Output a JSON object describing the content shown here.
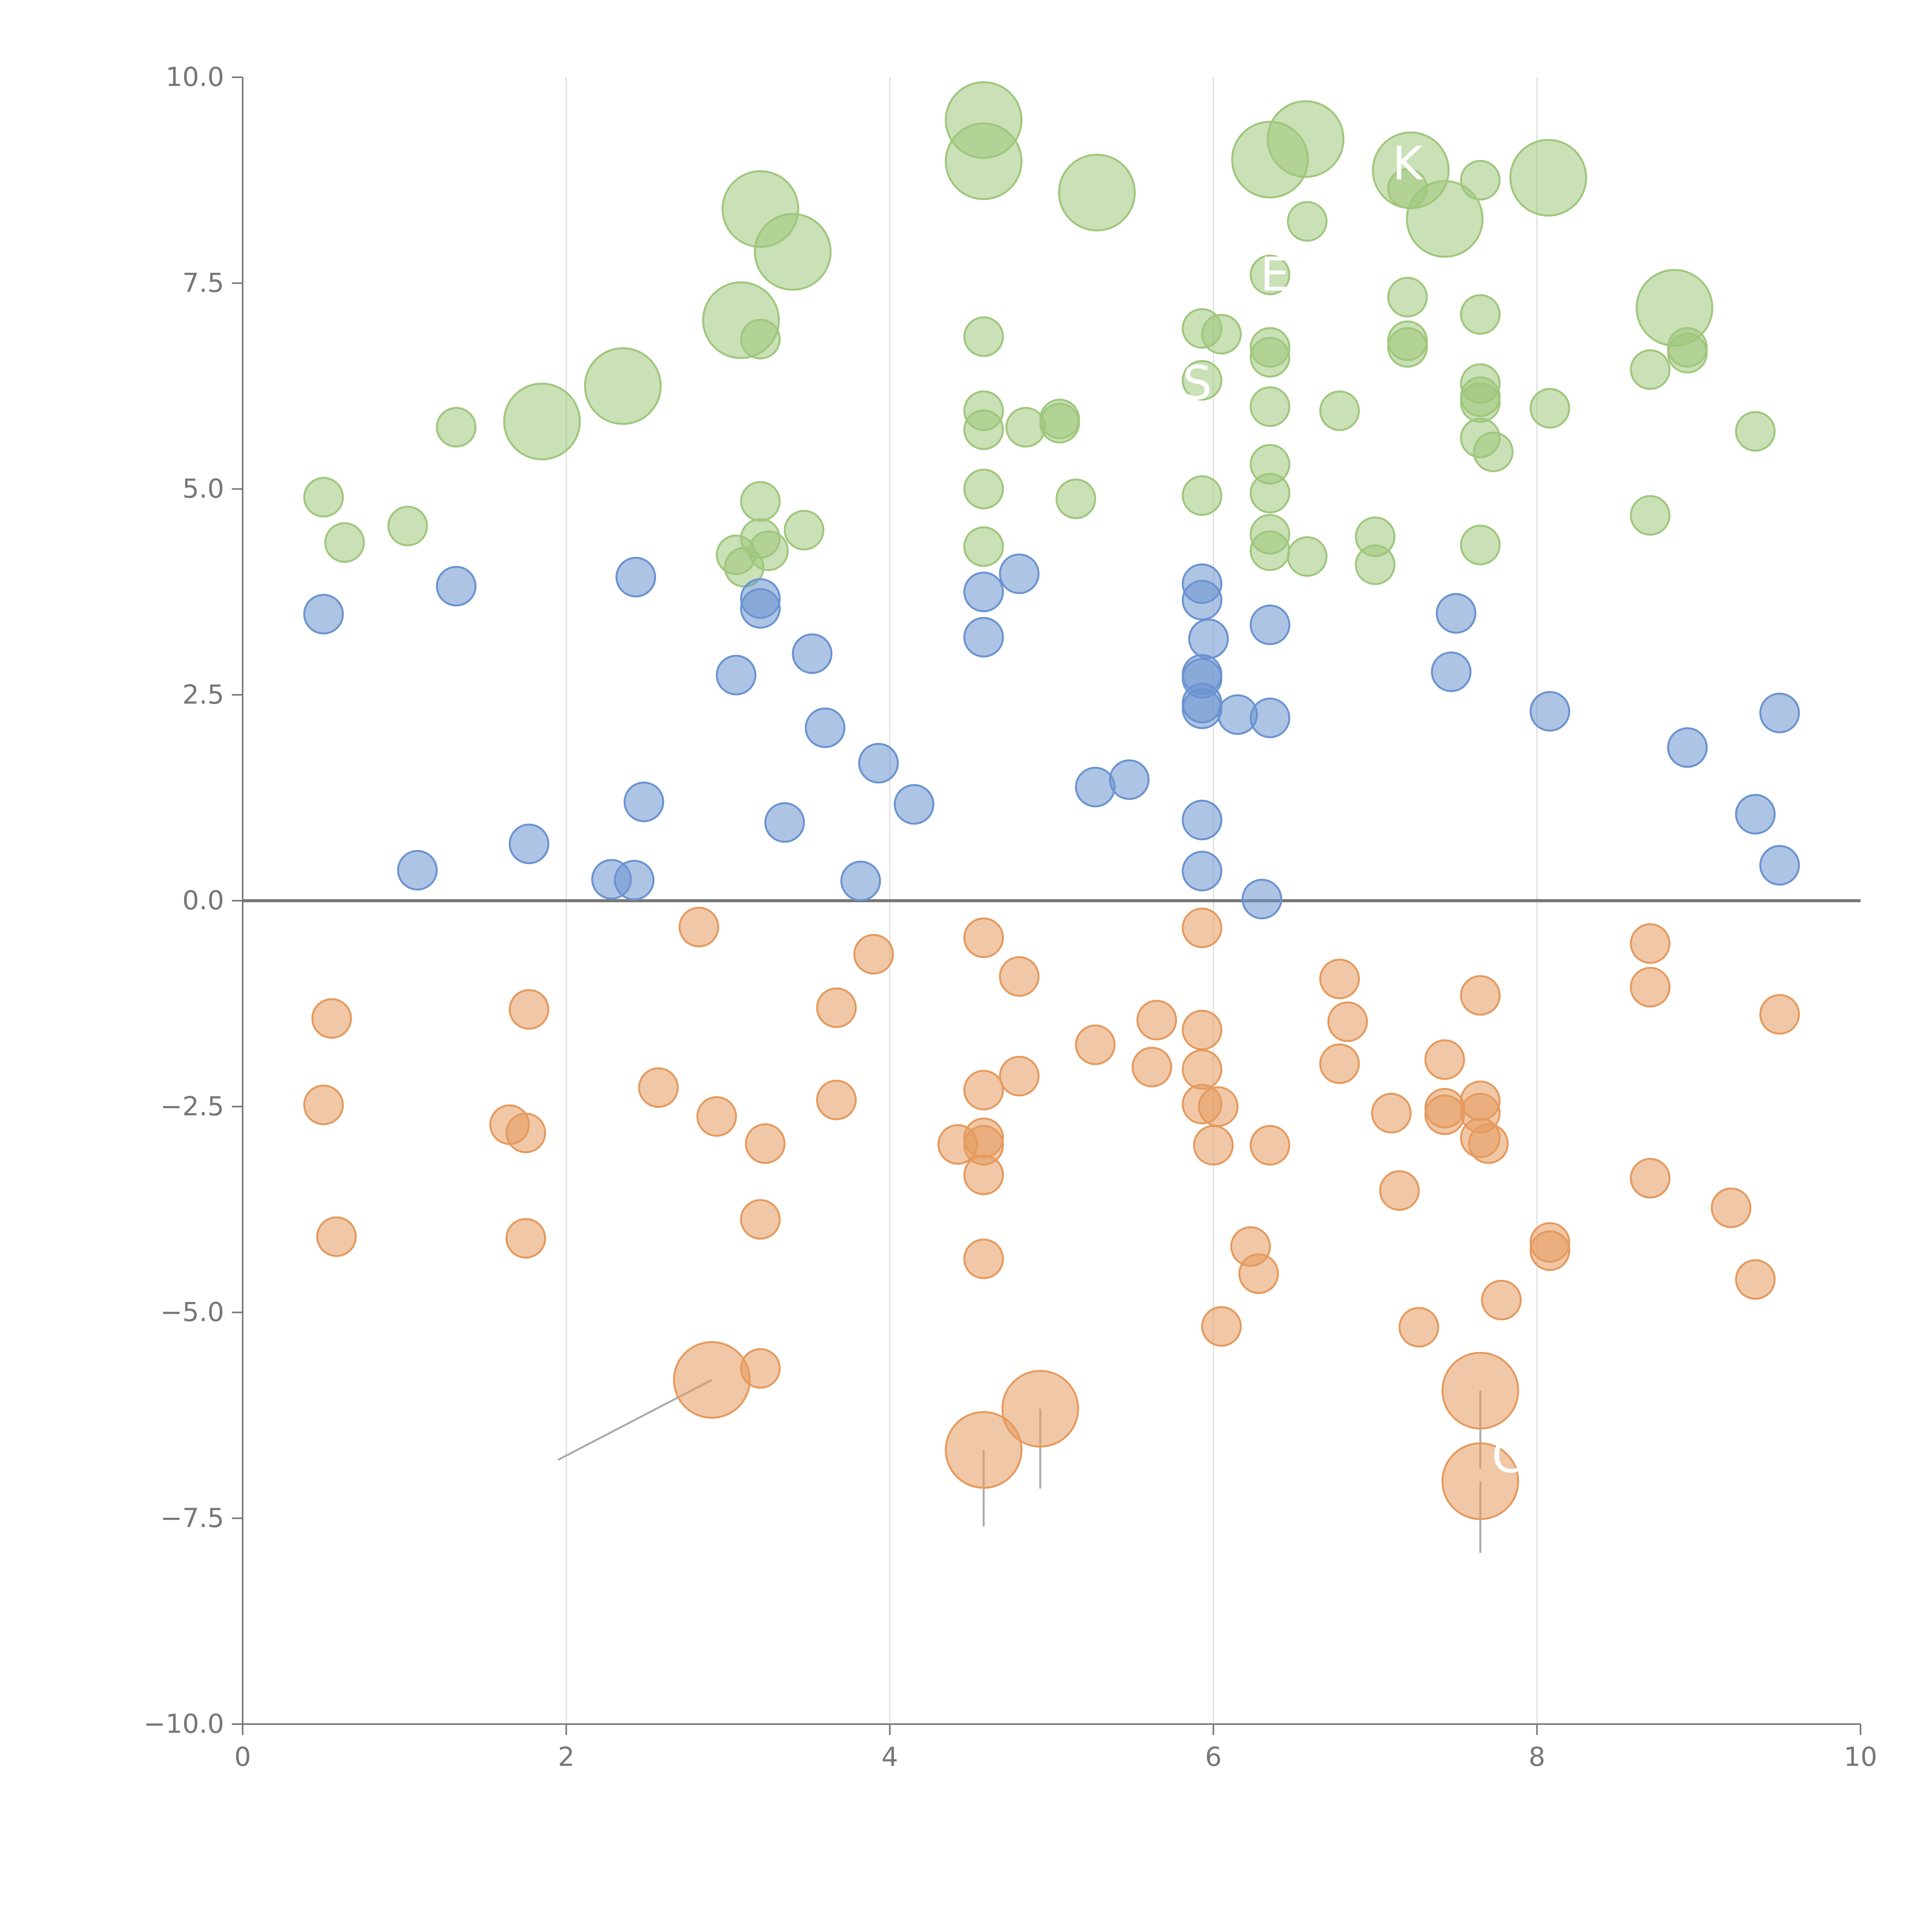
{
  "chart_data": {
    "type": "scatter",
    "title": "",
    "xlabel": "",
    "ylabel": "",
    "xlim": [
      0,
      10
    ],
    "ylim": [
      -10,
      10
    ],
    "xticks": [
      0,
      2,
      4,
      6,
      8,
      10
    ],
    "xtick_labels": [
      "0",
      "2",
      "4",
      "6",
      "8",
      "10"
    ],
    "yticks": [
      10,
      7.5,
      5,
      2.5,
      0,
      -2.5,
      -5,
      -7.5,
      -10
    ],
    "ytick_labels": [
      "10.0",
      "7.5",
      "5.0",
      "2.5",
      "0.0",
      "−2.5",
      "−5.0",
      "−7.5",
      "−10.0"
    ],
    "vertical_gridlines": [
      2,
      4,
      6,
      8
    ],
    "zero_line": 0,
    "colors": {
      "green": "#9fc77c",
      "blue": "#6b93d0",
      "orange": "#e59a5e",
      "axis": "#777777",
      "grid": "#dddddd",
      "leader": "#aaaaaa"
    },
    "series": [
      {
        "name": "green",
        "color": "#9fc77c",
        "points": [
          [
            0.5,
            4.9
          ],
          [
            0.63,
            4.35
          ],
          [
            1.02,
            4.55
          ],
          [
            1.32,
            5.75
          ],
          [
            3.2,
            4.85
          ],
          [
            3.2,
            4.4
          ],
          [
            3.25,
            4.25
          ],
          [
            3.47,
            4.5
          ],
          [
            3.05,
            4.2
          ],
          [
            3.1,
            4.05
          ],
          [
            3.2,
            6.82
          ],
          [
            4.58,
            6.85
          ],
          [
            4.58,
            5.95
          ],
          [
            4.58,
            5.72
          ],
          [
            4.84,
            5.75
          ],
          [
            5.05,
            5.85
          ],
          [
            5.05,
            5.8
          ],
          [
            4.58,
            5.0
          ],
          [
            4.58,
            4.3
          ],
          [
            5.15,
            4.88
          ],
          [
            5.93,
            6.95
          ],
          [
            6.05,
            6.88
          ],
          [
            5.93,
            6.32
          ],
          [
            5.93,
            4.92
          ],
          [
            6.35,
            7.6
          ],
          [
            6.58,
            8.25
          ],
          [
            6.35,
            6.72
          ],
          [
            6.35,
            6.6
          ],
          [
            6.35,
            6.0
          ],
          [
            6.35,
            5.3
          ],
          [
            6.35,
            4.95
          ],
          [
            6.35,
            4.45
          ],
          [
            6.35,
            4.25
          ],
          [
            6.58,
            4.18
          ],
          [
            6.78,
            5.95
          ],
          [
            7.0,
            4.42
          ],
          [
            7.0,
            4.08
          ],
          [
            7.2,
            7.33
          ],
          [
            7.2,
            6.8
          ],
          [
            7.2,
            6.72
          ],
          [
            7.2,
            8.65
          ],
          [
            7.65,
            8.75
          ],
          [
            7.65,
            7.12
          ],
          [
            7.65,
            6.28
          ],
          [
            7.65,
            6.12
          ],
          [
            7.65,
            6.05
          ],
          [
            7.65,
            5.62
          ],
          [
            7.73,
            5.45
          ],
          [
            7.65,
            4.32
          ],
          [
            8.08,
            5.98
          ],
          [
            8.7,
            6.45
          ],
          [
            8.7,
            4.68
          ],
          [
            8.93,
            6.72
          ],
          [
            8.93,
            6.65
          ],
          [
            9.35,
            5.7
          ]
        ]
      },
      {
        "name": "blue",
        "color": "#6b93d0",
        "points": [
          [
            0.5,
            3.48
          ],
          [
            1.32,
            3.82
          ],
          [
            2.43,
            3.93
          ],
          [
            1.08,
            0.37
          ],
          [
            1.77,
            0.69
          ],
          [
            2.28,
            0.26
          ],
          [
            2.42,
            0.25
          ],
          [
            2.48,
            1.2
          ],
          [
            3.2,
            3.67
          ],
          [
            3.2,
            3.55
          ],
          [
            3.05,
            2.74
          ],
          [
            3.35,
            0.95
          ],
          [
            3.52,
            3.0
          ],
          [
            3.6,
            2.1
          ],
          [
            3.93,
            1.67
          ],
          [
            3.82,
            0.24
          ],
          [
            4.15,
            1.17
          ],
          [
            4.58,
            3.75
          ],
          [
            4.58,
            3.2
          ],
          [
            4.8,
            3.97
          ],
          [
            5.27,
            1.38
          ],
          [
            5.48,
            1.47
          ],
          [
            5.93,
            3.85
          ],
          [
            5.93,
            3.65
          ],
          [
            5.97,
            3.18
          ],
          [
            5.93,
            2.75
          ],
          [
            5.93,
            2.7
          ],
          [
            5.93,
            2.4
          ],
          [
            5.93,
            2.33
          ],
          [
            6.15,
            2.26
          ],
          [
            6.35,
            3.35
          ],
          [
            6.35,
            2.22
          ],
          [
            5.93,
            0.98
          ],
          [
            5.93,
            0.36
          ],
          [
            6.3,
            0.02
          ],
          [
            7.5,
            3.49
          ],
          [
            7.47,
            2.78
          ],
          [
            8.08,
            2.3
          ],
          [
            8.93,
            1.86
          ],
          [
            9.35,
            1.05
          ],
          [
            9.5,
            2.28
          ],
          [
            9.5,
            0.43
          ]
        ]
      },
      {
        "name": "orange",
        "color": "#e59a5e",
        "points": [
          [
            0.55,
            -1.43
          ],
          [
            0.5,
            -2.48
          ],
          [
            0.58,
            -4.08
          ],
          [
            1.65,
            -2.72
          ],
          [
            1.75,
            -2.82
          ],
          [
            1.77,
            -1.32
          ],
          [
            1.75,
            -4.1
          ],
          [
            2.82,
            -0.32
          ],
          [
            2.57,
            -2.27
          ],
          [
            2.93,
            -2.62
          ],
          [
            3.23,
            -2.95
          ],
          [
            3.2,
            -3.87
          ],
          [
            3.2,
            -5.68
          ],
          [
            3.67,
            -1.3
          ],
          [
            3.67,
            -2.42
          ],
          [
            3.9,
            -0.65
          ],
          [
            4.58,
            -0.45
          ],
          [
            4.8,
            -0.92
          ],
          [
            4.58,
            -2.3
          ],
          [
            4.8,
            -2.13
          ],
          [
            4.42,
            -2.96
          ],
          [
            4.58,
            -2.88
          ],
          [
            4.58,
            -2.97
          ],
          [
            4.58,
            -3.33
          ],
          [
            4.58,
            -4.35
          ],
          [
            5.27,
            -1.75
          ],
          [
            5.65,
            -1.45
          ],
          [
            5.62,
            -2.02
          ],
          [
            5.93,
            -0.33
          ],
          [
            5.93,
            -1.57
          ],
          [
            5.93,
            -2.05
          ],
          [
            5.93,
            -2.47
          ],
          [
            6.03,
            -2.5
          ],
          [
            6.0,
            -2.97
          ],
          [
            6.35,
            -2.97
          ],
          [
            6.23,
            -4.2
          ],
          [
            6.28,
            -4.53
          ],
          [
            6.05,
            -5.17
          ],
          [
            6.78,
            -0.95
          ],
          [
            6.83,
            -1.47
          ],
          [
            6.78,
            -1.98
          ],
          [
            7.1,
            -2.58
          ],
          [
            7.15,
            -3.52
          ],
          [
            7.27,
            -5.18
          ],
          [
            7.43,
            -1.93
          ],
          [
            7.43,
            -2.52
          ],
          [
            7.43,
            -2.6
          ],
          [
            7.65,
            -1.15
          ],
          [
            7.65,
            -2.43
          ],
          [
            7.65,
            -2.58
          ],
          [
            7.65,
            -2.88
          ],
          [
            7.7,
            -2.95
          ],
          [
            7.78,
            -4.85
          ],
          [
            8.08,
            -4.15
          ],
          [
            8.08,
            -4.25
          ],
          [
            8.7,
            -0.52
          ],
          [
            8.7,
            -1.05
          ],
          [
            8.7,
            -3.37
          ],
          [
            9.2,
            -3.73
          ],
          [
            9.35,
            -4.6
          ],
          [
            9.5,
            -1.38
          ]
        ]
      }
    ],
    "highlight_points": [
      {
        "series": "green",
        "x": 1.85,
        "y": 5.82,
        "leader_dx": 0.03,
        "leader_dy": 0.32,
        "label_dx": -0.1,
        "label_dy": 0.4
      },
      {
        "series": "green",
        "x": 2.35,
        "y": 6.25,
        "leader_dx": -0.22,
        "leader_dy": 0.02,
        "label_dx": -0.3,
        "label_dy": 0.0
      },
      {
        "series": "green",
        "x": 3.08,
        "y": 7.05,
        "leader_dx": -0.2,
        "leader_dy": 0.25,
        "label_dx": -0.3,
        "label_dy": 0.35
      },
      {
        "series": "green",
        "x": 3.2,
        "y": 8.4,
        "leader_dx": 0.05,
        "leader_dy": -0.02,
        "label_dx": 0.1,
        "label_dy": 0.0
      },
      {
        "series": "green",
        "x": 3.4,
        "y": 7.88,
        "leader_dx": -0.05,
        "leader_dy": -0.4,
        "label_dx": -0.1,
        "label_dy": -0.5
      },
      {
        "series": "green",
        "x": 4.58,
        "y": 9.48,
        "leader_dx": -0.05,
        "leader_dy": 0.02,
        "label_dx": -0.1,
        "label_dy": 0.0
      },
      {
        "series": "green",
        "x": 4.58,
        "y": 8.98,
        "leader_dx": 0.0,
        "leader_dy": -0.35,
        "label_dx": 0.1,
        "label_dy": -0.45
      },
      {
        "series": "green",
        "x": 5.28,
        "y": 8.6,
        "leader_dx": 0.0,
        "leader_dy": -0.2,
        "label_dx": 0.0,
        "label_dy": -0.3
      },
      {
        "series": "green",
        "x": 6.35,
        "y": 9.0,
        "leader_dx": -0.1,
        "leader_dy": 0.06,
        "label_dx": -0.2,
        "label_dy": 0.1
      },
      {
        "series": "green",
        "x": 6.57,
        "y": 9.25,
        "leader_dx": 0.02,
        "leader_dy": -0.4,
        "label_dx": 0.0,
        "label_dy": -0.5
      },
      {
        "series": "green",
        "x": 7.22,
        "y": 8.87,
        "leader_dx": 0.0,
        "leader_dy": 0.0,
        "label_dx": 0.0,
        "label_dy": 0.0
      },
      {
        "series": "green",
        "x": 7.43,
        "y": 8.28,
        "leader_dx": 0.0,
        "leader_dy": 0.0,
        "label_dx": 0.0,
        "label_dy": 0.0
      },
      {
        "series": "green",
        "x": 8.07,
        "y": 8.78,
        "leader_dx": 0.2,
        "leader_dy": -0.1,
        "label_dx": 0.3,
        "label_dy": -0.15
      },
      {
        "series": "green",
        "x": 8.85,
        "y": 7.2,
        "leader_dx": 0.15,
        "leader_dy": -0.02,
        "label_dx": 0.25,
        "label_dy": 0.0
      },
      {
        "series": "orange",
        "x": 2.9,
        "y": -5.82,
        "leader_dx": -0.95,
        "leader_dy": -0.97,
        "label_dx": -1.0,
        "label_dy": -1.0
      },
      {
        "series": "orange",
        "x": 4.58,
        "y": -6.67,
        "leader_dx": 0.0,
        "leader_dy": -0.93,
        "label_dx": 0.0,
        "label_dy": -1.0
      },
      {
        "series": "orange",
        "x": 4.93,
        "y": -6.17,
        "leader_dx": 0.0,
        "leader_dy": -0.97,
        "label_dx": 0.0,
        "label_dy": -1.0
      },
      {
        "series": "orange",
        "x": 7.65,
        "y": -5.95,
        "leader_dx": 0.0,
        "leader_dy": -0.95,
        "label_dx": 0.0,
        "label_dy": -1.0
      },
      {
        "series": "orange",
        "x": 7.65,
        "y": -7.05,
        "leader_dx": 0.0,
        "leader_dy": -0.87,
        "label_dx": 0.0,
        "label_dy": -0.95
      }
    ]
  },
  "overlay_labels": [
    {
      "text": "K",
      "x": 7.2,
      "y": 8.95
    },
    {
      "text": "E",
      "x": 6.38,
      "y": 7.6
    },
    {
      "text": "S",
      "x": 5.9,
      "y": 6.28
    },
    {
      "text": "C",
      "x": 7.82,
      "y": -6.75
    }
  ]
}
